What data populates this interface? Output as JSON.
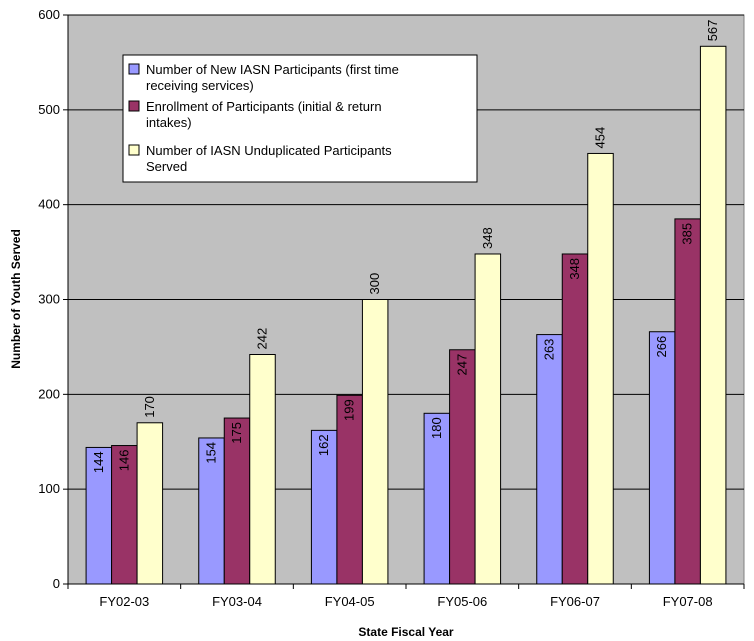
{
  "chart_data": {
    "type": "bar",
    "title": "",
    "xlabel": "State Fiscal Year",
    "ylabel": "Number of Youth Served",
    "ylim": [
      0,
      600
    ],
    "yticks": [
      0,
      100,
      200,
      300,
      400,
      500,
      600
    ],
    "grid": true,
    "legend_position": "top-left",
    "plot_background": "#C0C0C0",
    "categories": [
      "FY02-03",
      "FY03-04",
      "FY04-05",
      "FY05-06",
      "FY06-07",
      "FY07-08"
    ],
    "series": [
      {
        "name": "Number of New IASN Participants (first time receiving services)",
        "legend_lines": [
          "Number of New IASN Participants (first time",
          "receiving services)"
        ],
        "color": "#9999FF",
        "values": [
          144,
          154,
          162,
          180,
          263,
          266
        ],
        "label_inside": true
      },
      {
        "name": "Enrollment of Participants (initial & return intakes)",
        "legend_lines": [
          "Enrollment of Participants (initial & return",
          "intakes)"
        ],
        "color": "#993366",
        "values": [
          146,
          175,
          199,
          247,
          348,
          385
        ],
        "label_inside": true
      },
      {
        "name": "Number of IASN Unduplicated Participants Served",
        "legend_lines": [
          "Number of IASN Unduplicated Participants",
          "Served"
        ],
        "color": "#FFFFCC",
        "values": [
          170,
          242,
          300,
          348,
          454,
          567
        ],
        "label_inside": false
      }
    ]
  }
}
